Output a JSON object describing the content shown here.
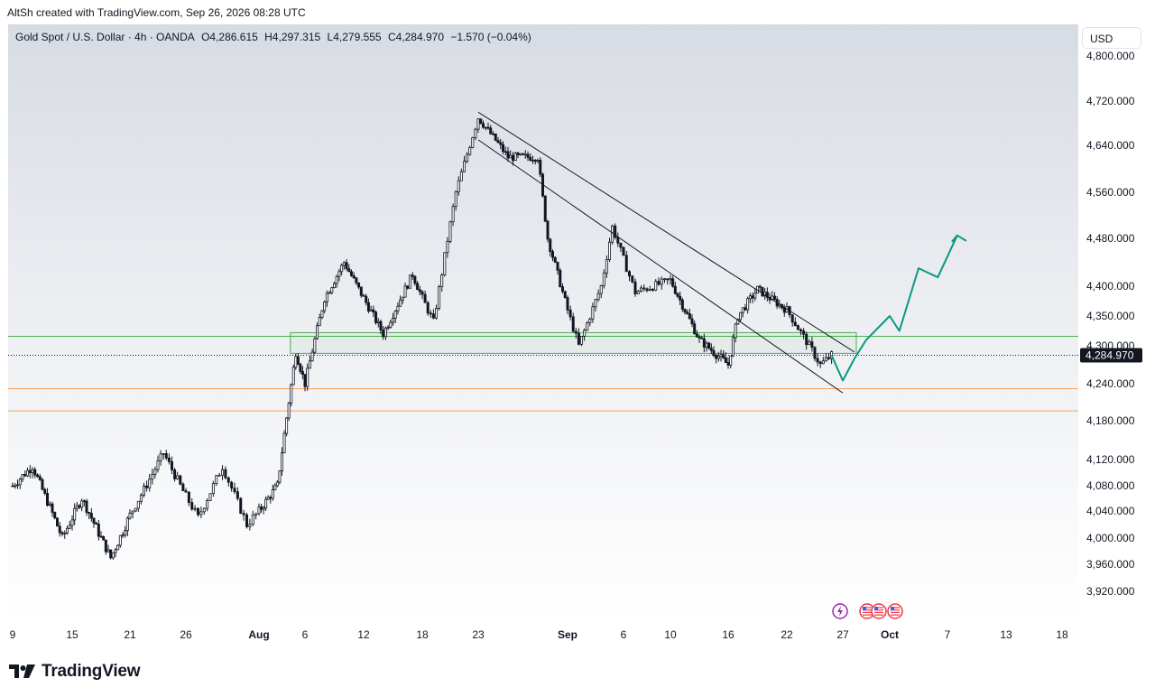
{
  "header": {
    "attribution": "AltSh created with TradingView.com, Sep 26, 2026 08:28 UTC"
  },
  "symbol": {
    "name": "Gold Spot / U.S. Dollar · 4h · OANDA",
    "open": "O4,286.615",
    "high": "H4,297.315",
    "low": "L4,279.555",
    "close": "C4,284.970",
    "change": "−1.570 (−0.04%)"
  },
  "currency_button": "USD",
  "current_price_label": "4,284.970",
  "brand": {
    "name": "TradingView",
    "logo_icon": "tradingview-logo-icon"
  },
  "event_icons": [
    "lightning-icon",
    "us-flag-icon",
    "us-flag-icon",
    "us-flag-icon"
  ],
  "colors": {
    "candle": "#131722",
    "projection": "#089981",
    "support_zone": "#4caf50",
    "orange_levels": "#f7a35c",
    "event_lightning": "#9c27b0",
    "event_flag": "#f23645"
  },
  "chart_data": {
    "type": "candlestick",
    "timeframe": "4h",
    "y_ticks": [
      "4,800.000",
      "4,720.000",
      "4,640.000",
      "4,560.000",
      "4,480.000",
      "4,400.000",
      "4,350.000",
      "4,300.000",
      "4,240.000",
      "4,180.000",
      "4,120.000",
      "4,080.000",
      "4,040.000",
      "4,000.000",
      "3,960.000",
      "3,920.000"
    ],
    "y_tick_values": [
      4800,
      4720,
      4640,
      4560,
      4480,
      4400,
      4350,
      4300,
      4240,
      4180,
      4120,
      4080,
      4040,
      4000,
      3960,
      3920
    ],
    "x_ticks": [
      {
        "label": "9",
        "bold": false
      },
      {
        "label": "15",
        "bold": false
      },
      {
        "label": "21",
        "bold": false
      },
      {
        "label": "26",
        "bold": false
      },
      {
        "label": "Aug",
        "bold": true
      },
      {
        "label": "6",
        "bold": false
      },
      {
        "label": "12",
        "bold": false
      },
      {
        "label": "18",
        "bold": false
      },
      {
        "label": "23",
        "bold": false
      },
      {
        "label": "Sep",
        "bold": true
      },
      {
        "label": "6",
        "bold": false
      },
      {
        "label": "10",
        "bold": false
      },
      {
        "label": "16",
        "bold": false
      },
      {
        "label": "22",
        "bold": false
      },
      {
        "label": "27",
        "bold": false
      },
      {
        "label": "Oct",
        "bold": true
      },
      {
        "label": "7",
        "bold": false
      },
      {
        "label": "13",
        "bold": false
      },
      {
        "label": "18",
        "bold": false
      }
    ],
    "price_path_key_points": [
      {
        "date": "Jul 9",
        "price": 4080
      },
      {
        "date": "Jul 11",
        "price": 4110
      },
      {
        "date": "Jul 14",
        "price": 4000
      },
      {
        "date": "Jul 16",
        "price": 4060
      },
      {
        "date": "Jul 19",
        "price": 3970
      },
      {
        "date": "Jul 24",
        "price": 4130
      },
      {
        "date": "Jul 27",
        "price": 4030
      },
      {
        "date": "Jul 29",
        "price": 4110
      },
      {
        "date": "Jul 31",
        "price": 4020
      },
      {
        "date": "Aug 3",
        "price": 4080
      },
      {
        "date": "Aug 5",
        "price": 4290
      },
      {
        "date": "Aug 6",
        "price": 4240
      },
      {
        "date": "Aug 8",
        "price": 4380
      },
      {
        "date": "Aug 10",
        "price": 4440
      },
      {
        "date": "Aug 14",
        "price": 4320
      },
      {
        "date": "Aug 17",
        "price": 4420
      },
      {
        "date": "Aug 19",
        "price": 4340
      },
      {
        "date": "Aug 21",
        "price": 4560
      },
      {
        "date": "Aug 23",
        "price": 4690
      },
      {
        "date": "Aug 26",
        "price": 4620
      },
      {
        "date": "Aug 29",
        "price": 4620
      },
      {
        "date": "Aug 30",
        "price": 4480
      },
      {
        "date": "Sep 2",
        "price": 4300
      },
      {
        "date": "Sep 4",
        "price": 4400
      },
      {
        "date": "Sep 5",
        "price": 4500
      },
      {
        "date": "Sep 7",
        "price": 4390
      },
      {
        "date": "Sep 10",
        "price": 4410
      },
      {
        "date": "Sep 13",
        "price": 4310
      },
      {
        "date": "Sep 16",
        "price": 4270
      },
      {
        "date": "Sep 17",
        "price": 4350
      },
      {
        "date": "Sep 19",
        "price": 4395
      },
      {
        "date": "Sep 22",
        "price": 4360
      },
      {
        "date": "Sep 25",
        "price": 4270
      },
      {
        "date": "Sep 26",
        "price": 4285
      }
    ],
    "projection_path": [
      {
        "date": "Sep 26",
        "price": 4285
      },
      {
        "date": "Sep 27",
        "price": 4245
      },
      {
        "date": "Sep 28",
        "price": 4280
      },
      {
        "date": "Sep 29",
        "price": 4310
      },
      {
        "date": "Oct 1",
        "price": 4350
      },
      {
        "date": "Oct 2",
        "price": 4325
      },
      {
        "date": "Oct 4",
        "price": 4430
      },
      {
        "date": "Oct 6",
        "price": 4415
      },
      {
        "date": "Oct 8",
        "price": 4485
      }
    ],
    "drawings": [
      {
        "kind": "trendline",
        "from": {
          "date": "Aug 23",
          "price": 4700
        },
        "to": {
          "date": "Sep 28",
          "price": 4290
        }
      },
      {
        "kind": "trendline",
        "from": {
          "date": "Aug 23",
          "price": 4650
        },
        "to": {
          "date": "Sep 27",
          "price": 4225
        }
      },
      {
        "kind": "zone",
        "x_from": "Aug 5",
        "x_to": "Sep 28",
        "price_top": 4316,
        "price_bottom": 4288,
        "color": "green"
      },
      {
        "kind": "hline",
        "price": 4316,
        "color": "green"
      },
      {
        "kind": "hline",
        "price": 4232,
        "color": "orange"
      },
      {
        "kind": "hline",
        "price": 4196,
        "color": "orange"
      },
      {
        "kind": "hline",
        "price": 4285,
        "style": "dotted"
      }
    ],
    "current_price": 4284.97
  }
}
